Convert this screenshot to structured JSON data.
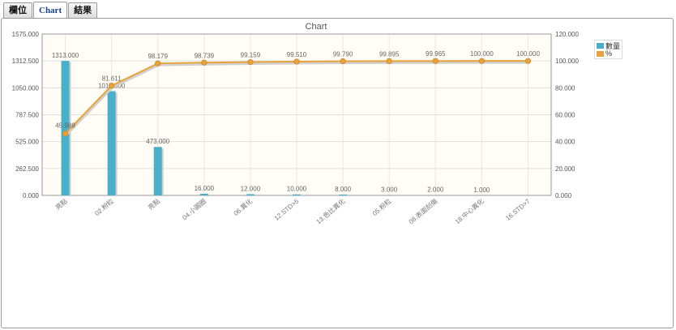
{
  "tabs": [
    {
      "label": "欄位",
      "active": false
    },
    {
      "label": "Chart",
      "active": true
    },
    {
      "label": "結果",
      "active": false
    }
  ],
  "chart_data": {
    "type": "bar",
    "title": "Chart",
    "categories": [
      "亮點",
      "02.粉粒",
      "亮點",
      "04.小圓圈",
      "06.異化",
      "12.STD>5",
      "13.色比異化",
      "05.粉粒",
      "08.表面刮傷",
      "18.中心異化",
      "16.STD>7"
    ],
    "series": [
      {
        "name": "數量",
        "type": "bar",
        "axis": "left",
        "color": "#4aafc8",
        "values": [
          1313,
          1017,
          473,
          16,
          12,
          10,
          8,
          3,
          2,
          1,
          0
        ],
        "labels": [
          "1313.000",
          "1017.000",
          "473.000",
          "16.000",
          "12.000",
          "10.000",
          "8.000",
          "3.000",
          "2.000",
          "1.000",
          ""
        ]
      },
      {
        "name": "%",
        "type": "line",
        "axis": "right",
        "color": "#e8a33a",
        "values": [
          45.989,
          81.611,
          98.179,
          98.739,
          99.159,
          99.51,
          99.79,
          99.895,
          99.965,
          100.0,
          100.0
        ],
        "labels": [
          "45.989",
          "81.611",
          "98.179",
          "98.739",
          "99.159",
          "99.510",
          "99.790",
          "99.895",
          "99.965",
          "100.000",
          "100.000"
        ]
      }
    ],
    "y_left": {
      "ticks": [
        "0.000",
        "262.500",
        "525.000",
        "787.500",
        "1050.000",
        "1312.500",
        "1575.000"
      ],
      "min": 0,
      "max": 1575
    },
    "y_right": {
      "ticks": [
        "0.000",
        "20.000",
        "40.000",
        "60.000",
        "80.000",
        "100.000",
        "120.000"
      ],
      "min": 0,
      "max": 120
    },
    "grid": true,
    "legend_position": "right"
  }
}
